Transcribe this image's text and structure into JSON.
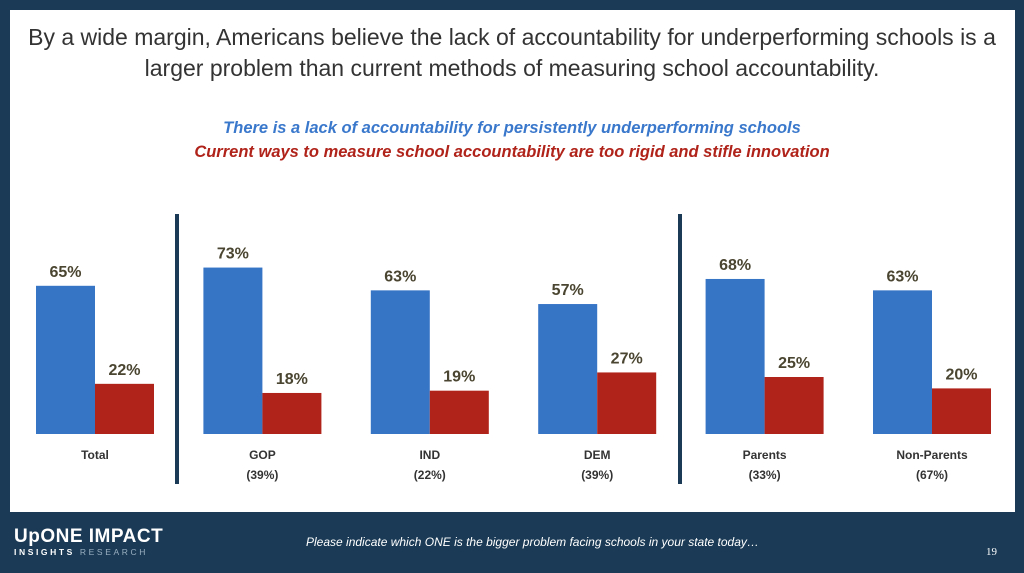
{
  "title": "By a wide margin, Americans believe the lack of accountability for underperforming schools is a larger problem than current methods of measuring school accountability.",
  "footer": {
    "logo_line1": "UpONE IMPACT",
    "logo_line2a": "INSIGHTS",
    "logo_line2b": "RESEARCH",
    "question": "Please indicate which ONE is the bigger problem facing schools in your state today…",
    "page_number": "19"
  },
  "chart_data": {
    "type": "bar",
    "categories": [
      "Total",
      "GOP",
      "IND",
      "DEM",
      "Parents",
      "Non-Parents"
    ],
    "category_sublabels": [
      "",
      "(39%)",
      "(22%)",
      "(39%)",
      "(33%)",
      "(67%)"
    ],
    "series": [
      {
        "name": "There is a lack of accountability for persistently underperforming schools",
        "color": "#3674c6",
        "values": [
          65,
          73,
          63,
          57,
          68,
          63
        ]
      },
      {
        "name": "Current ways to measure school accountability are too rigid and stifle innovation",
        "color": "#b0231a",
        "values": [
          22,
          18,
          19,
          27,
          25,
          20
        ]
      }
    ],
    "data_labels": [
      [
        "65%",
        "73%",
        "63%",
        "57%",
        "68%",
        "63%"
      ],
      [
        "22%",
        "18%",
        "19%",
        "27%",
        "25%",
        "20%"
      ]
    ],
    "ylim": [
      0,
      100
    ],
    "grid": false,
    "legend_placement": "top",
    "dividers_after": [
      "Total",
      "DEM"
    ]
  }
}
